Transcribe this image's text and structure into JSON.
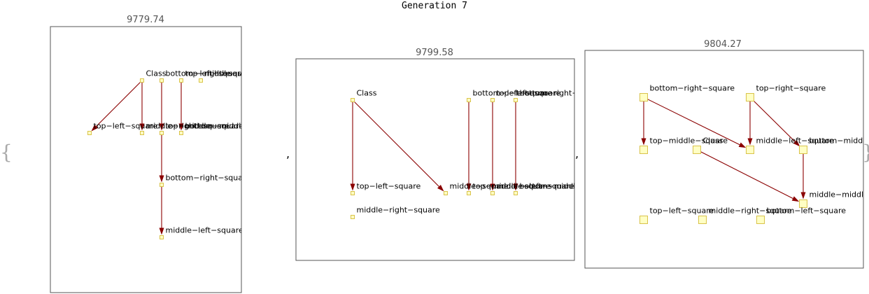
{
  "title": "Generation 7",
  "brace_open": "{",
  "brace_close": "}",
  "separator": ",",
  "colors": {
    "node_fill": "#ffffc4",
    "node_stroke": "#d9c34a",
    "edge": "#8b0000",
    "frame": "#555555"
  },
  "panels": [
    {
      "score": "9779.74",
      "nodes": [
        {
          "id": "Class",
          "label": "Class"
        },
        {
          "id": "bottom-left-square",
          "label": "bottom−left−square"
        },
        {
          "id": "top-right-square",
          "label": "top−right−square"
        },
        {
          "id": "middle-square",
          "label": "middle−square"
        },
        {
          "id": "top-left-square",
          "label": "top−left−square"
        },
        {
          "id": "middle-right-square",
          "label": "middle−right−square"
        },
        {
          "id": "top-middle-square",
          "label": "top−middle−square"
        },
        {
          "id": "bottom-middle-square",
          "label": "bottom−middle−square"
        },
        {
          "id": "bottom-right-square",
          "label": "bottom−right−square"
        },
        {
          "id": "middle-left-square",
          "label": "middle−left−square"
        }
      ],
      "edges": [
        [
          "Class",
          "top-left-square"
        ],
        [
          "Class",
          "middle-right-square"
        ],
        [
          "bottom-left-square",
          "top-middle-square"
        ],
        [
          "top-right-square",
          "bottom-middle-square"
        ],
        [
          "top-middle-square",
          "bottom-right-square"
        ],
        [
          "bottom-right-square",
          "middle-left-square"
        ]
      ]
    },
    {
      "score": "9799.58",
      "nodes": [
        {
          "id": "Class",
          "label": "Class"
        },
        {
          "id": "bottom-left-square",
          "label": "bottom−left−square"
        },
        {
          "id": "top-left-square-b",
          "label": "top−left−square"
        },
        {
          "id": "bottom-right-square",
          "label": "bottom−right−square"
        },
        {
          "id": "top-left-square",
          "label": "top−left−square"
        },
        {
          "id": "middle-right-square",
          "label": "middle−right−square"
        },
        {
          "id": "middle-square",
          "label": "middle−square"
        },
        {
          "id": "top-middle-square",
          "label": "top−middle−square"
        },
        {
          "id": "middle-left-square",
          "label": "middle−left−square"
        },
        {
          "id": "bottom-middle-square",
          "label": "bottom−middle−square"
        }
      ],
      "edges": [
        [
          "Class",
          "top-left-square"
        ],
        [
          "Class",
          "middle-square"
        ],
        [
          "bottom-left-square",
          "top-middle-square"
        ],
        [
          "top-left-square-b",
          "middle-left-square"
        ],
        [
          "bottom-right-square",
          "bottom-middle-square"
        ]
      ]
    },
    {
      "score": "9804.27",
      "nodes": [
        {
          "id": "bottom-right-square",
          "label": "bottom−right−square"
        },
        {
          "id": "top-right-square",
          "label": "top−right−square"
        },
        {
          "id": "top-middle-square",
          "label": "top−middle−square"
        },
        {
          "id": "Class",
          "label": "Class"
        },
        {
          "id": "middle-left-square",
          "label": "middle−left−square"
        },
        {
          "id": "bottom-middle-square",
          "label": "bottom−middle−square"
        },
        {
          "id": "middle-middle-square",
          "label": "middle−middle−square"
        },
        {
          "id": "top-left-square",
          "label": "top−left−square"
        },
        {
          "id": "middle-right-square",
          "label": "middle−right−square"
        },
        {
          "id": "bottom-left-square",
          "label": "bottom−left−square"
        }
      ],
      "edges": [
        [
          "bottom-right-square",
          "top-middle-square"
        ],
        [
          "bottom-right-square",
          "middle-left-square"
        ],
        [
          "top-right-square",
          "middle-left-square"
        ],
        [
          "top-right-square",
          "bottom-middle-square"
        ],
        [
          "bottom-middle-square",
          "middle-middle-square"
        ],
        [
          "Class",
          "middle-middle-square"
        ]
      ]
    }
  ]
}
